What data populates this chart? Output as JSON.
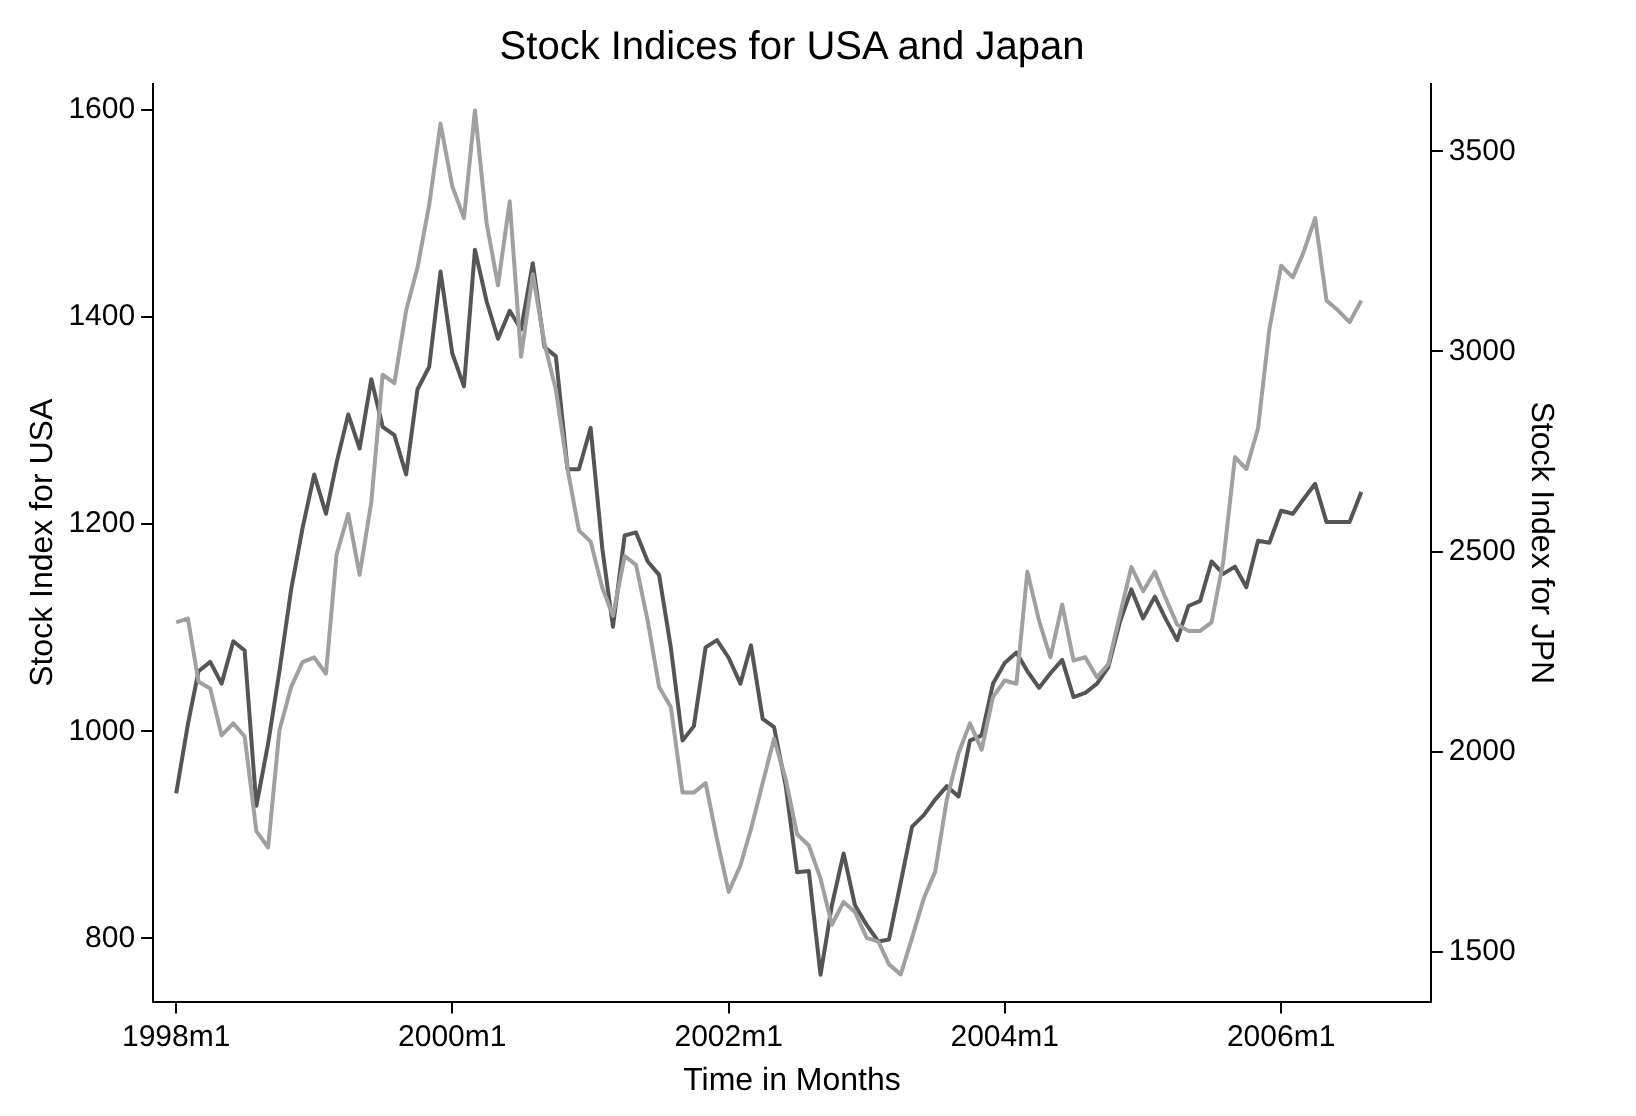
{
  "chart_data": {
    "type": "line",
    "title": "Stock Indices for USA and Japan",
    "xlabel": "Time in Months",
    "ylabel": "Stock Index for USA",
    "y2label": "Stock Index for JPN",
    "x": [
      "1998-01",
      "1998-02",
      "1998-03",
      "1998-04",
      "1998-05",
      "1998-06",
      "1998-07",
      "1998-08",
      "1998-09",
      "1998-10",
      "1998-11",
      "1998-12",
      "1999-01",
      "1999-02",
      "1999-03",
      "1999-04",
      "1999-05",
      "1999-06",
      "1999-07",
      "1999-08",
      "1999-09",
      "1999-10",
      "1999-11",
      "1999-12",
      "2000-01",
      "2000-02",
      "2000-03",
      "2000-04",
      "2000-05",
      "2000-06",
      "2000-07",
      "2000-08",
      "2000-09",
      "2000-10",
      "2000-11",
      "2000-12",
      "2001-01",
      "2001-02",
      "2001-03",
      "2001-04",
      "2001-05",
      "2001-06",
      "2001-07",
      "2001-08",
      "2001-09",
      "2001-10",
      "2001-11",
      "2001-12",
      "2002-01",
      "2002-02",
      "2002-03",
      "2002-04",
      "2002-05",
      "2002-06",
      "2002-07",
      "2002-08",
      "2002-09",
      "2002-10",
      "2002-11",
      "2002-12",
      "2003-01",
      "2003-02",
      "2003-03",
      "2003-04",
      "2003-05",
      "2003-06",
      "2003-07",
      "2003-08",
      "2003-09",
      "2003-10",
      "2003-11",
      "2003-12",
      "2004-01",
      "2004-02",
      "2004-03",
      "2004-04",
      "2004-05",
      "2004-06",
      "2004-07",
      "2004-08",
      "2004-09",
      "2004-10",
      "2004-11",
      "2004-12",
      "2005-01",
      "2005-02",
      "2005-03",
      "2005-04",
      "2005-05",
      "2005-06",
      "2005-07",
      "2005-08",
      "2005-09",
      "2005-10",
      "2005-11",
      "2005-12",
      "2006-01",
      "2006-02",
      "2006-03",
      "2006-04",
      "2006-05",
      "2006-06",
      "2006-07",
      "2006-08"
    ],
    "series": [
      {
        "color": "#a0a0a0",
        "axis": "y2",
        "values": [
          2323,
          2333,
          2175,
          2158,
          2041,
          2071,
          2038,
          1802,
          1761,
          2054,
          2162,
          2224,
          2236,
          2195,
          2492,
          2594,
          2442,
          2624,
          2942,
          2921,
          3102,
          3209,
          3366,
          3569,
          3413,
          3333,
          3602,
          3320,
          3165,
          3375,
          2987,
          3193,
          3020,
          2904,
          2706,
          2553,
          2525,
          2409,
          2340,
          2489,
          2467,
          2327,
          2162,
          2112,
          1898,
          1898,
          1922,
          1782,
          1650,
          1716,
          1807,
          1922,
          2033,
          1931,
          1794,
          1766,
          1683,
          1568,
          1625,
          1600,
          1535,
          1526,
          1469,
          1444,
          1535,
          1634,
          1700,
          1881,
          1997,
          2071,
          2005,
          2137,
          2178,
          2170,
          2450,
          2327,
          2236,
          2368,
          2228,
          2236,
          2186,
          2219,
          2343,
          2462,
          2401,
          2450,
          2385,
          2318,
          2302,
          2302,
          2323,
          2475,
          2736,
          2706,
          2808,
          3056,
          3214,
          3185,
          3247,
          3333,
          3127,
          3102,
          3073,
          3127
        ]
      },
      {
        "color": "#555555",
        "axis": "y",
        "values": [
          940,
          1007,
          1058,
          1067,
          1046,
          1087,
          1078,
          928,
          988,
          1058,
          1137,
          1196,
          1248,
          1210,
          1259,
          1306,
          1273,
          1340,
          1294,
          1286,
          1248,
          1330,
          1352,
          1444,
          1365,
          1333,
          1465,
          1415,
          1379,
          1406,
          1388,
          1452,
          1371,
          1362,
          1253,
          1253,
          1293,
          1176,
          1101,
          1189,
          1192,
          1164,
          1151,
          1081,
          991,
          1005,
          1081,
          1088,
          1071,
          1046,
          1083,
          1012,
          1004,
          947,
          864,
          865,
          765,
          832,
          882,
          832,
          813,
          797,
          799,
          854,
          908,
          919,
          934,
          947,
          937,
          991,
          996,
          1046,
          1066,
          1076,
          1058,
          1042,
          1056,
          1069,
          1033,
          1037,
          1046,
          1062,
          1106,
          1137,
          1109,
          1130,
          1109,
          1088,
          1121,
          1126,
          1164,
          1152,
          1159,
          1139,
          1184,
          1182,
          1213,
          1210,
          1224,
          1239,
          1202,
          1202,
          1202,
          1231
        ]
      }
    ],
    "xlim": [
      "1997-11",
      "2007-02"
    ],
    "xticks": [
      {
        "value": "1998-01",
        "label": "1998m1"
      },
      {
        "value": "2000-01",
        "label": "2000m1"
      },
      {
        "value": "2002-01",
        "label": "2002m1"
      },
      {
        "value": "2004-01",
        "label": "2004m1"
      },
      {
        "value": "2006-01",
        "label": "2006m1"
      }
    ],
    "ylim": [
      739,
      1625
    ],
    "yticks": [
      800,
      1000,
      1200,
      1400,
      1600
    ],
    "y2lim": [
      1376,
      3668
    ],
    "y2ticks": [
      1500,
      2000,
      2500,
      3000,
      3500
    ],
    "grid": false,
    "legend": false,
    "marker": "none",
    "line_style": "solid"
  }
}
